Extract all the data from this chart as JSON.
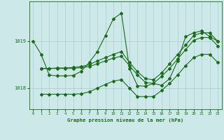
{
  "title": "Graphe pression niveau de la mer (hPa)",
  "background_color": "#cce8e8",
  "grid_color": "#aacccc",
  "line_color": "#1a6b1a",
  "xlim": [
    -0.5,
    23.5
  ],
  "ylim": [
    1017.55,
    1019.85
  ],
  "yticks": [
    1018,
    1019
  ],
  "xticks": [
    0,
    1,
    2,
    3,
    4,
    5,
    6,
    7,
    8,
    9,
    10,
    11,
    12,
    13,
    14,
    15,
    16,
    17,
    18,
    19,
    20,
    21,
    22,
    23
  ],
  "line1_x": [
    0,
    1,
    2,
    3,
    4,
    5,
    6,
    7,
    8,
    9,
    10,
    11,
    12,
    13,
    14,
    15,
    16,
    17,
    18,
    19,
    20,
    21,
    22,
    23
  ],
  "line1_y": [
    1019.0,
    1018.72,
    1018.28,
    1018.26,
    1018.26,
    1018.27,
    1018.36,
    1018.55,
    1018.78,
    1019.12,
    1019.48,
    1019.6,
    1018.42,
    1018.05,
    1018.04,
    1018.1,
    1018.06,
    1018.2,
    1018.58,
    1019.1,
    1019.18,
    1019.22,
    1019.1,
    1019.0
  ],
  "line2_x": [
    1,
    2,
    3,
    4,
    5,
    6,
    7,
    8,
    9,
    10,
    11,
    12,
    13,
    14,
    15,
    16,
    17,
    18,
    19,
    20,
    21,
    22,
    23
  ],
  "line2_y": [
    1018.42,
    1018.42,
    1018.43,
    1018.43,
    1018.44,
    1018.46,
    1018.5,
    1018.58,
    1018.65,
    1018.72,
    1018.78,
    1018.55,
    1018.35,
    1018.2,
    1018.18,
    1018.32,
    1018.52,
    1018.72,
    1018.92,
    1019.12,
    1019.18,
    1019.18,
    1019.0
  ],
  "line3_x": [
    1,
    2,
    3,
    4,
    5,
    6,
    7,
    8,
    9,
    10,
    11,
    12,
    13,
    14,
    15,
    16,
    17,
    18,
    19,
    20,
    21,
    22,
    23
  ],
  "line3_y": [
    1018.42,
    1018.42,
    1018.42,
    1018.42,
    1018.42,
    1018.44,
    1018.46,
    1018.52,
    1018.58,
    1018.64,
    1018.68,
    1018.48,
    1018.28,
    1018.12,
    1018.1,
    1018.25,
    1018.42,
    1018.62,
    1018.82,
    1019.02,
    1019.08,
    1019.08,
    1018.9
  ],
  "line4_x": [
    1,
    2,
    3,
    4,
    5,
    6,
    7,
    8,
    9,
    10,
    11,
    12,
    13,
    14,
    15,
    16,
    17,
    18,
    19,
    20,
    21,
    22,
    23
  ],
  "line4_y": [
    1017.87,
    1017.87,
    1017.87,
    1017.87,
    1017.87,
    1017.88,
    1017.92,
    1018.0,
    1018.08,
    1018.15,
    1018.18,
    1018.0,
    1017.82,
    1017.82,
    1017.82,
    1017.95,
    1018.1,
    1018.28,
    1018.48,
    1018.65,
    1018.72,
    1018.72,
    1018.55
  ]
}
